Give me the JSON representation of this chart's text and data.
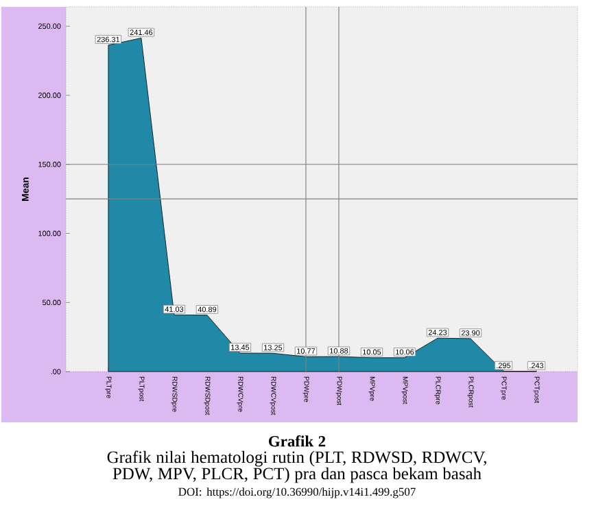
{
  "chart_data": {
    "type": "area",
    "title": "Grafik 2",
    "subtitle": "Grafik nilai hematologi rutin (PLT, RDWSD, RDWCV, PDW, MPV, PLCR, PCT) pra dan pasca bekam basah",
    "annotations": [
      "DOI: https://doi.org/10.36990/hijp.v14i1.499.g507"
    ],
    "ylabel": "Mean",
    "categories": [
      "PLTpre",
      "PLTpost",
      "RDWSDpre",
      "RDWSDpost",
      "RDWCVpre",
      "RDWCVpost",
      "PDWpre",
      "PDWpost",
      "MPVpre",
      "MPVpost",
      "PLCRpre",
      "PLCRpost",
      "PCTpre",
      "PCTpost"
    ],
    "values": [
      236.31,
      241.46,
      41.03,
      40.89,
      13.45,
      13.25,
      10.77,
      10.88,
      10.05,
      10.06,
      24.23,
      23.9,
      0.295,
      0.243
    ],
    "value_labels": [
      "236.31",
      "241.46",
      "41.03",
      "40.89",
      "13.45",
      "13.25",
      "10.77",
      "10.88",
      "10.05",
      "10.06",
      "24.23",
      "23.90",
      ".295",
      ".243"
    ],
    "color": "#2189a8",
    "ylim": [
      0,
      264
    ],
    "yticks": [
      {
        "value": 0,
        "label": ".00"
      },
      {
        "value": 50,
        "label": "50.00"
      },
      {
        "value": 100,
        "label": "100.00"
      },
      {
        "value": 150,
        "label": "150.00"
      },
      {
        "value": 200,
        "label": "200.00"
      },
      {
        "value": 250,
        "label": "250.00"
      }
    ],
    "ref_lines": [
      {
        "axis": "y",
        "value": 150,
        "color": "#808080"
      },
      {
        "axis": "y",
        "value": 125,
        "color": "#808080"
      },
      {
        "axis": "x",
        "value": "PDWpre",
        "color": "#808080"
      },
      {
        "axis": "x",
        "value": "PDWpost",
        "color": "#808080"
      }
    ],
    "grid": false
  }
}
